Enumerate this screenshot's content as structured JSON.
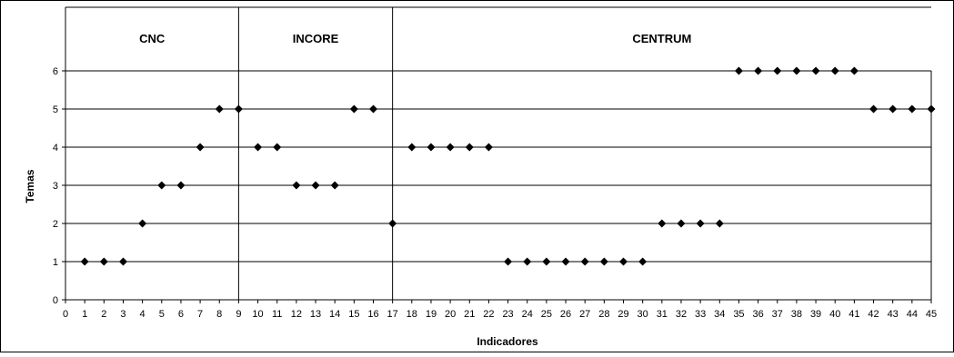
{
  "chart_data": {
    "type": "scatter",
    "title": "",
    "xlabel": "Indicadores",
    "ylabel": "Temas",
    "xlim": [
      0,
      45
    ],
    "ylim": [
      0,
      6
    ],
    "x_ticks": [
      0,
      1,
      2,
      3,
      4,
      5,
      6,
      7,
      8,
      9,
      10,
      11,
      12,
      13,
      14,
      15,
      16,
      17,
      18,
      19,
      20,
      21,
      22,
      23,
      24,
      25,
      26,
      27,
      28,
      29,
      30,
      31,
      32,
      33,
      34,
      35,
      36,
      37,
      38,
      39,
      40,
      41,
      42,
      43,
      44,
      45
    ],
    "y_ticks": [
      0,
      1,
      2,
      3,
      4,
      5,
      6
    ],
    "grid": "horizontal",
    "legend": "none",
    "marker": "diamond",
    "marker_color": "#000000",
    "groups": [
      {
        "label": "CNC",
        "from": 0,
        "to": 9
      },
      {
        "label": "INCORE",
        "from": 9,
        "to": 17
      },
      {
        "label": "CENTRUM",
        "from": 17,
        "to": 45
      }
    ],
    "series": [
      {
        "x": [
          1,
          2,
          3,
          4,
          5,
          6,
          7,
          8,
          9,
          10,
          11,
          12,
          13,
          14,
          15,
          16,
          17,
          18,
          19,
          20,
          21,
          22,
          23,
          24,
          25,
          26,
          27,
          28,
          29,
          30,
          31,
          32,
          33,
          34,
          35,
          36,
          37,
          38,
          39,
          40,
          41,
          42,
          43,
          44,
          45
        ],
        "y": [
          1,
          1,
          1,
          2,
          3,
          3,
          4,
          5,
          5,
          4,
          4,
          3,
          3,
          3,
          5,
          5,
          2,
          4,
          4,
          4,
          4,
          4,
          1,
          1,
          1,
          1,
          1,
          1,
          1,
          1,
          2,
          2,
          2,
          2,
          6,
          6,
          6,
          6,
          6,
          6,
          6,
          5,
          5,
          5,
          5
        ]
      }
    ]
  }
}
